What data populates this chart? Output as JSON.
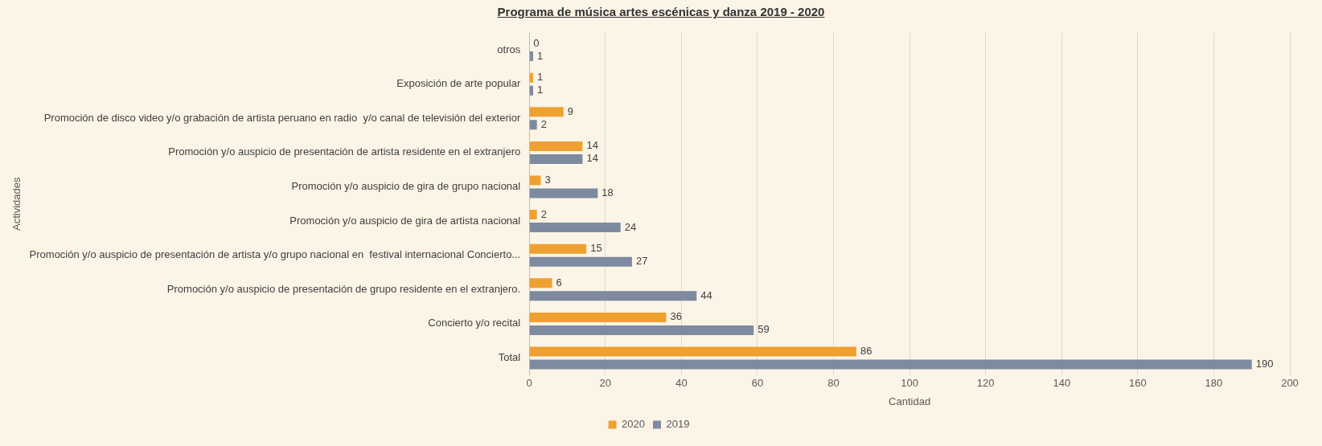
{
  "chart_data": {
    "type": "bar",
    "orientation": "horizontal",
    "title": "Programa de música artes escénicas y danza 2019 - 2020",
    "xlabel": "Cantidad",
    "ylabel": "Actividades",
    "categories": [
      "otros",
      "Exposición de arte popular",
      "Promoción de disco video y/o grabación de artista peruano en radio  y/o canal de televisión del exterior",
      "Promoción y/o auspicio de presentación de artista residente en el extranjero",
      "Promoción y/o auspicio de gira de grupo nacional",
      "Promoción y/o auspicio de gira de artista nacional",
      "Promoción y/o auspicio de presentación de artista y/o grupo nacional en  festival internacional Concierto...",
      "Promoción y/o auspicio de presentación de grupo residente en el extranjero.",
      "Concierto y/o recital",
      "Total"
    ],
    "series": [
      {
        "name": "2020",
        "color": "#f0a030",
        "values": [
          0,
          1,
          9,
          14,
          3,
          2,
          15,
          6,
          36,
          86
        ]
      },
      {
        "name": "2019",
        "color": "#7d8aa0",
        "values": [
          1,
          1,
          2,
          14,
          18,
          24,
          27,
          44,
          59,
          190
        ]
      }
    ],
    "xlim": [
      0,
      200
    ],
    "xticks": [
      0,
      20,
      40,
      60,
      80,
      100,
      120,
      140,
      160,
      180,
      200
    ],
    "grid": "x",
    "legend": "bottom",
    "data_labels": true
  }
}
